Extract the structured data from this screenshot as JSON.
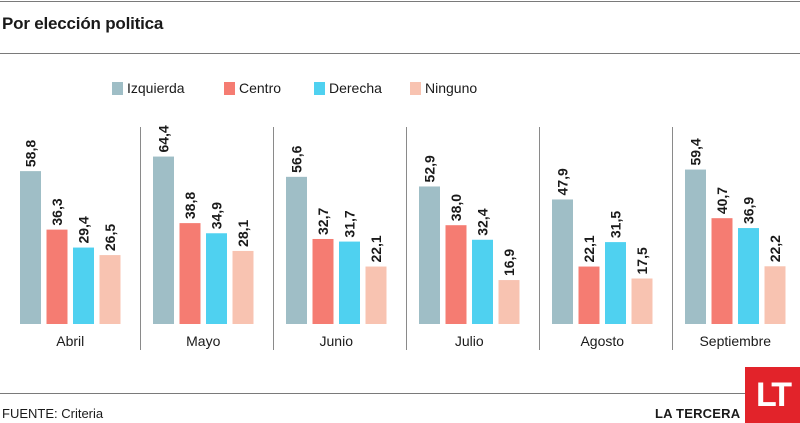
{
  "title": "Por elección politica",
  "source": "FUENTE: Criteria",
  "brand": {
    "name": "LA TERCERA",
    "logo_text": "LT",
    "logo_color": "#e2232a"
  },
  "chart_data": {
    "type": "bar",
    "title": "Por elección politica",
    "xlabel": "",
    "ylabel": "",
    "ylim": [
      0,
      70
    ],
    "grid": false,
    "legend_position": "top",
    "categories": [
      "Abril",
      "Mayo",
      "Junio",
      "Julio",
      "Agosto",
      "Septiembre"
    ],
    "series": [
      {
        "name": "Izquierda",
        "color": "#9fbec6",
        "values": [
          58.8,
          64.4,
          56.6,
          52.9,
          47.9,
          59.4
        ],
        "labels": [
          "58,8",
          "64,4",
          "56,6",
          "52,9",
          "47,9",
          "59,4"
        ]
      },
      {
        "name": "Centro",
        "color": "#f57c72",
        "values": [
          36.3,
          38.8,
          32.7,
          38.0,
          22.1,
          40.7
        ],
        "labels": [
          "36,3",
          "38,8",
          "32,7",
          "38,0",
          "22,1",
          "40,7"
        ]
      },
      {
        "name": "Derecha",
        "color": "#4fd1f0",
        "values": [
          29.4,
          34.9,
          31.7,
          32.4,
          31.5,
          36.9
        ],
        "labels": [
          "29,4",
          "34,9",
          "31,7",
          "32,4",
          "31,5",
          "36,9"
        ]
      },
      {
        "name": "Ninguno",
        "color": "#f8c3b1",
        "values": [
          26.5,
          28.1,
          22.1,
          16.9,
          17.5,
          22.2
        ],
        "labels": [
          "26,5",
          "28,1",
          "22,1",
          "16,9",
          "17,5",
          "22,2"
        ]
      }
    ]
  }
}
